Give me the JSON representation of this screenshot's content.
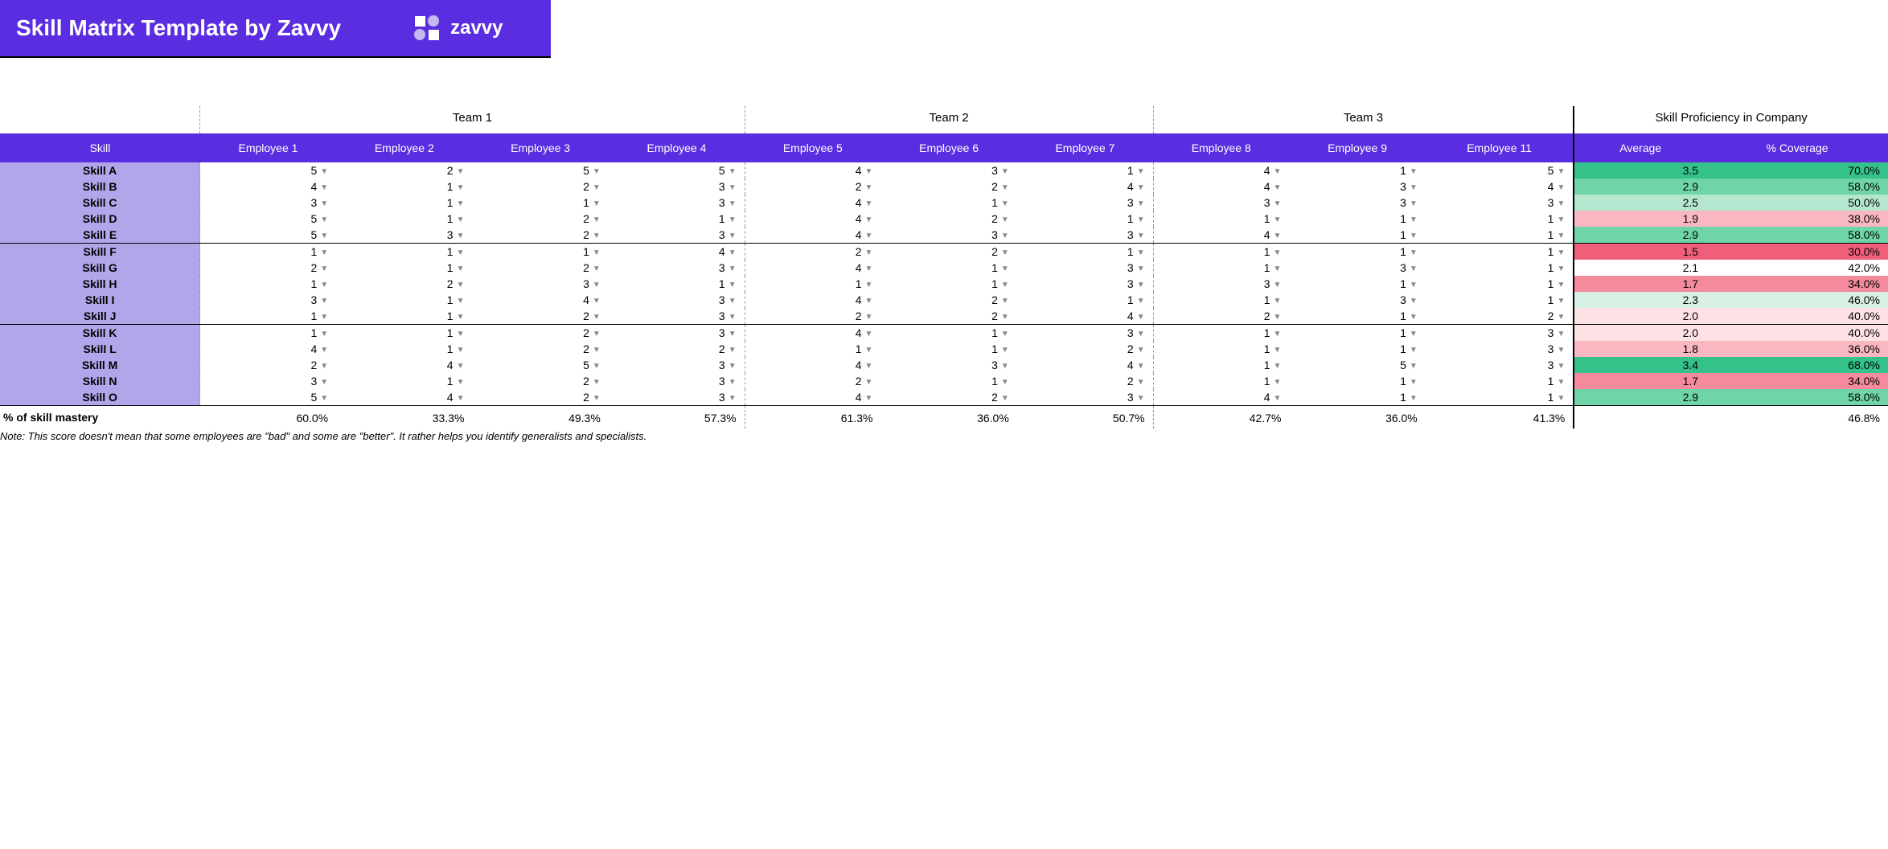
{
  "banner": {
    "title": "Skill Matrix Template by Zavvy",
    "logo_text": "zavvy"
  },
  "colors": {
    "brand": "#5a2ee0",
    "skill_label_bg": "#b3a5ea",
    "heat": {
      "best": "#34c28a",
      "good": "#6fd4a7",
      "ok": "#b5e6cf",
      "light_ok": "#d8f0e3",
      "neutral": "#ffffff",
      "light_bad": "#fde1e5",
      "mid_bad": "#f9b8c1",
      "bad": "#f48a9c",
      "worst": "#ef5f7a"
    }
  },
  "teams": [
    {
      "name": "Team 1",
      "span": 4
    },
    {
      "name": "Team 2",
      "span": 3
    },
    {
      "name": "Team 3",
      "span": 3
    }
  ],
  "proficiency_header": "Skill Proficiency in Company",
  "headers": {
    "skill": "Skill",
    "employees": [
      "Employee 1",
      "Employee 2",
      "Employee 3",
      "Employee 4",
      "Employee 5",
      "Employee 6",
      "Employee 7",
      "Employee 8",
      "Employee 9",
      "Employee 11"
    ],
    "average": "Average",
    "coverage": "% Coverage"
  },
  "skill_groups": [
    {
      "rows": [
        {
          "skill": "Skill A",
          "vals": [
            5,
            2,
            5,
            5,
            4,
            3,
            1,
            4,
            1,
            5
          ],
          "avg": "3.5",
          "cov": "70.0%",
          "heat": "best"
        },
        {
          "skill": "Skill B",
          "vals": [
            4,
            1,
            2,
            3,
            2,
            2,
            4,
            4,
            3,
            4
          ],
          "avg": "2.9",
          "cov": "58.0%",
          "heat": "good"
        },
        {
          "skill": "Skill C",
          "vals": [
            3,
            1,
            1,
            3,
            4,
            1,
            3,
            3,
            3,
            3
          ],
          "avg": "2.5",
          "cov": "50.0%",
          "heat": "ok"
        },
        {
          "skill": "Skill D",
          "vals": [
            5,
            1,
            2,
            1,
            4,
            2,
            1,
            1,
            1,
            1
          ],
          "avg": "1.9",
          "cov": "38.0%",
          "heat": "mid_bad"
        },
        {
          "skill": "Skill E",
          "vals": [
            5,
            3,
            2,
            3,
            4,
            3,
            3,
            4,
            1,
            1
          ],
          "avg": "2.9",
          "cov": "58.0%",
          "heat": "good"
        }
      ]
    },
    {
      "rows": [
        {
          "skill": "Skill F",
          "vals": [
            1,
            1,
            1,
            4,
            2,
            2,
            1,
            1,
            1,
            1
          ],
          "avg": "1.5",
          "cov": "30.0%",
          "heat": "worst"
        },
        {
          "skill": "Skill G",
          "vals": [
            2,
            1,
            2,
            3,
            4,
            1,
            3,
            1,
            3,
            1
          ],
          "avg": "2.1",
          "cov": "42.0%",
          "heat": "neutral"
        },
        {
          "skill": "Skill H",
          "vals": [
            1,
            2,
            3,
            1,
            1,
            1,
            3,
            3,
            1,
            1
          ],
          "avg": "1.7",
          "cov": "34.0%",
          "heat": "bad"
        },
        {
          "skill": "Skill I",
          "vals": [
            3,
            1,
            4,
            3,
            4,
            2,
            1,
            1,
            3,
            1
          ],
          "avg": "2.3",
          "cov": "46.0%",
          "heat": "light_ok"
        },
        {
          "skill": "Skill J",
          "vals": [
            1,
            1,
            2,
            3,
            2,
            2,
            4,
            2,
            1,
            2
          ],
          "avg": "2.0",
          "cov": "40.0%",
          "heat": "light_bad"
        }
      ]
    },
    {
      "rows": [
        {
          "skill": "Skill K",
          "vals": [
            1,
            1,
            2,
            3,
            4,
            1,
            3,
            1,
            1,
            3
          ],
          "avg": "2.0",
          "cov": "40.0%",
          "heat": "light_bad"
        },
        {
          "skill": "Skill L",
          "vals": [
            4,
            1,
            2,
            2,
            1,
            1,
            2,
            1,
            1,
            3
          ],
          "avg": "1.8",
          "cov": "36.0%",
          "heat": "mid_bad"
        },
        {
          "skill": "Skill M",
          "vals": [
            2,
            4,
            5,
            3,
            4,
            3,
            4,
            1,
            5,
            3
          ],
          "avg": "3.4",
          "cov": "68.0%",
          "heat": "best"
        },
        {
          "skill": "Skill N",
          "vals": [
            3,
            1,
            2,
            3,
            2,
            1,
            2,
            1,
            1,
            1
          ],
          "avg": "1.7",
          "cov": "34.0%",
          "heat": "bad"
        },
        {
          "skill": "Skill O",
          "vals": [
            5,
            4,
            2,
            3,
            4,
            2,
            3,
            4,
            1,
            1
          ],
          "avg": "2.9",
          "cov": "58.0%",
          "heat": "good"
        }
      ]
    }
  ],
  "mastery": {
    "label": "% of skill mastery",
    "vals": [
      "60.0%",
      "33.3%",
      "49.3%",
      "57.3%",
      "61.3%",
      "36.0%",
      "50.7%",
      "42.7%",
      "36.0%",
      "41.3%"
    ],
    "total": "46.8%"
  },
  "note": "Note: This score doesn't mean that some employees are \"bad\" and some are \"better\". It rather helps you identify generalists and specialists.",
  "team_col_ends": [
    3,
    6,
    9
  ]
}
